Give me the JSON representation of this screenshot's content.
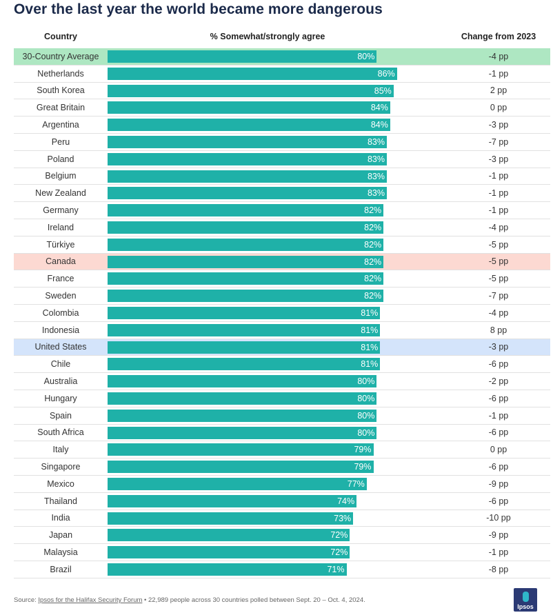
{
  "title": "Over the last year the world became more dangerous",
  "headers": {
    "country": "Country",
    "pct": "% Somewhat/strongly agree",
    "change": "Change from 2023"
  },
  "chart_data": {
    "type": "bar",
    "orientation": "horizontal",
    "title": "Over the last year the world became more dangerous",
    "xlabel": "% Somewhat/strongly agree",
    "categories": [
      "30-Country Average",
      "Netherlands",
      "South Korea",
      "Great Britain",
      "Argentina",
      "Peru",
      "Poland",
      "Belgium",
      "New Zealand",
      "Germany",
      "Ireland",
      "Türkiye",
      "Canada",
      "France",
      "Sweden",
      "Colombia",
      "Indonesia",
      "United States",
      "Chile",
      "Australia",
      "Hungary",
      "Spain",
      "South Africa",
      "Italy",
      "Singapore",
      "Mexico",
      "Thailand",
      "India",
      "Japan",
      "Malaysia",
      "Brazil"
    ],
    "values": [
      80,
      86,
      85,
      84,
      84,
      83,
      83,
      83,
      83,
      82,
      82,
      82,
      82,
      82,
      82,
      81,
      81,
      81,
      81,
      80,
      80,
      80,
      80,
      79,
      79,
      77,
      74,
      73,
      72,
      72,
      71
    ],
    "labels": [
      "80%",
      "86%",
      "85%",
      "84%",
      "84%",
      "83%",
      "83%",
      "83%",
      "83%",
      "82%",
      "82%",
      "82%",
      "82%",
      "82%",
      "82%",
      "81%",
      "81%",
      "81%",
      "81%",
      "80%",
      "80%",
      "80%",
      "80%",
      "79%",
      "79%",
      "77%",
      "74%",
      "73%",
      "72%",
      "72%",
      "71%"
    ],
    "change_from_2023": [
      "-4 pp",
      "-1 pp",
      "2 pp",
      "0 pp",
      "-3 pp",
      "-7 pp",
      "-3 pp",
      "-1 pp",
      "-1 pp",
      "-1 pp",
      "-4 pp",
      "-5 pp",
      "-5 pp",
      "-5 pp",
      "-7 pp",
      "-4 pp",
      "8 pp",
      "-3 pp",
      "-6 pp",
      "-2 pp",
      "-6 pp",
      "-1 pp",
      "-6 pp",
      "0 pp",
      "-6 pp",
      "-9 pp",
      "-6 pp",
      "-10 pp",
      "-9 pp",
      "-1 pp",
      "-8 pp"
    ],
    "highlights": {
      "30-Country Average": "green",
      "Canada": "red",
      "United States": "blue"
    },
    "colors": {
      "bar": "#1fb1a8",
      "green": "#aee7c2",
      "red": "#fcd9d2",
      "blue": "#d4e4fb"
    },
    "xlim": [
      0,
      100
    ]
  },
  "source": {
    "prefix": "Source: ",
    "link": "Ipsos for the Halifax Security Forum",
    "rest": " • 22,989 people across 30 countries polled between Sept. 20 – Oct. 4, 2024."
  },
  "logo": {
    "text": "Ipsos"
  }
}
